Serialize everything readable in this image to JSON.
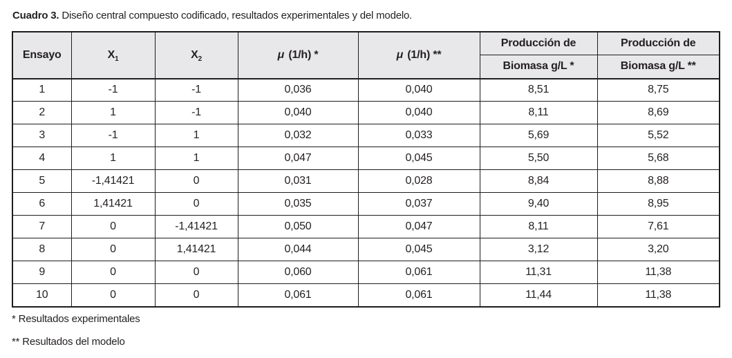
{
  "caption": {
    "label": "Cuadro 3.",
    "text": " Diseño central compuesto codificado, resultados experimentales y del modelo."
  },
  "table": {
    "headers": {
      "ensayo": "Ensayo",
      "x1": {
        "base": "X",
        "sub": "1"
      },
      "x2": {
        "base": "X",
        "sub": "2"
      },
      "mu_exp": {
        "symbol": "μ",
        "rest": " (1/h) *"
      },
      "mu_model": {
        "symbol": "μ",
        "rest": " (1/h) **"
      },
      "prod_exp_line1": "Producción de",
      "prod_exp_line2": "Biomasa g/L *",
      "prod_model_line1": "Producción de",
      "prod_model_line2": "Biomasa g/L **"
    },
    "rows": [
      [
        "1",
        "-1",
        "-1",
        "0,036",
        "0,040",
        "8,51",
        "8,75"
      ],
      [
        "2",
        "1",
        "-1",
        "0,040",
        "0,040",
        "8,11",
        "8,69"
      ],
      [
        "3",
        "-1",
        "1",
        "0,032",
        "0,033",
        "5,69",
        "5,52"
      ],
      [
        "4",
        "1",
        "1",
        "0,047",
        "0,045",
        "5,50",
        "5,68"
      ],
      [
        "5",
        "-1,41421",
        "0",
        "0,031",
        "0,028",
        "8,84",
        "8,88"
      ],
      [
        "6",
        "1,41421",
        "0",
        "0,035",
        "0,037",
        "9,40",
        "8,95"
      ],
      [
        "7",
        "0",
        "-1,41421",
        "0,050",
        "0,047",
        "8,11",
        "7,61"
      ],
      [
        "8",
        "0",
        "1,41421",
        "0,044",
        "0,045",
        "3,12",
        "3,20"
      ],
      [
        "9",
        "0",
        "0",
        "0,060",
        "0,061",
        "11,31",
        "11,38"
      ],
      [
        "10",
        "0",
        "0",
        "0,061",
        "0,061",
        "11,44",
        "11,38"
      ]
    ]
  },
  "footnotes": [
    "* Resultados experimentales",
    "** Resultados del modelo"
  ],
  "colors": {
    "header_bg": "#e8e8ea",
    "border": "#1c1c1c",
    "text": "#231f20",
    "background": "#ffffff"
  }
}
